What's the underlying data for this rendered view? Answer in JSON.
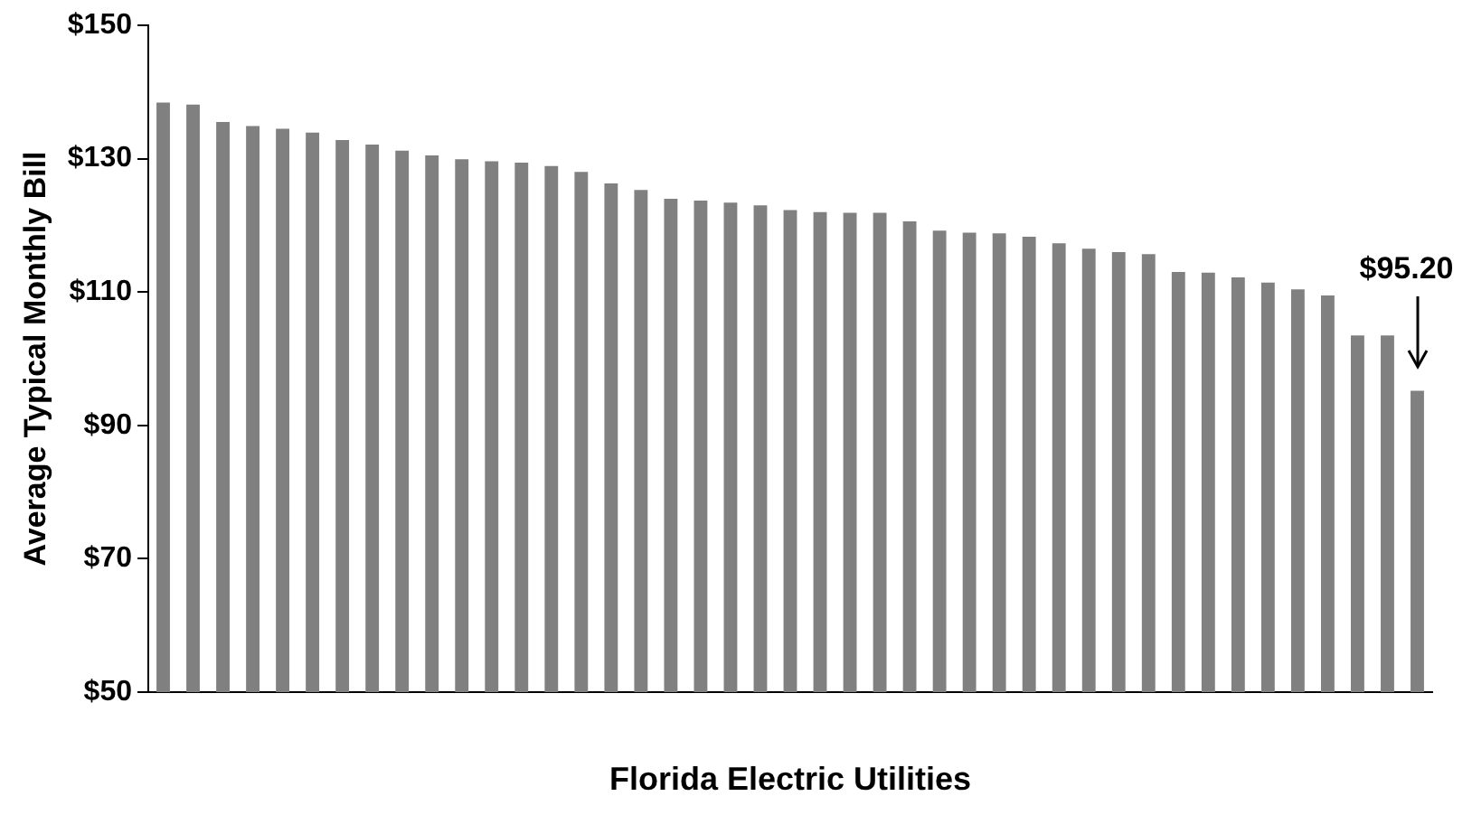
{
  "chart_data": {
    "type": "bar",
    "xlabel": "Florida Electric Utilities",
    "ylabel": "Average Typical Monthly Bill",
    "categories": [
      null,
      null,
      null,
      null,
      null,
      null,
      null,
      null,
      null,
      null,
      null,
      null,
      null,
      null,
      null,
      null,
      null,
      null,
      null,
      null,
      null,
      null,
      null,
      null,
      null,
      null,
      null,
      null,
      null,
      null,
      null,
      null,
      null,
      null,
      null,
      null,
      null,
      null,
      null,
      null,
      null,
      null,
      null
    ],
    "values": [
      138.4,
      138.1,
      135.5,
      134.9,
      134.5,
      133.9,
      132.8,
      132.1,
      131.2,
      130.5,
      129.9,
      129.6,
      129.4,
      128.9,
      128.0,
      126.3,
      125.3,
      124.0,
      123.7,
      123.4,
      123.0,
      122.3,
      122.0,
      121.9,
      121.9,
      120.6,
      119.2,
      118.9,
      118.8,
      118.3,
      117.3,
      116.5,
      116.0,
      115.7,
      113.0,
      112.9,
      112.2,
      111.4,
      110.4,
      109.5,
      103.5,
      103.5,
      95.2
    ],
    "color": "#808080",
    "ylim": [
      50,
      150
    ],
    "yticks": [
      {
        "value": 50,
        "label": "$50"
      },
      {
        "value": 70,
        "label": "$70"
      },
      {
        "value": 90,
        "label": "$90"
      },
      {
        "value": 110,
        "label": "$110"
      },
      {
        "value": 130,
        "label": "$130"
      },
      {
        "value": 150,
        "label": "$150"
      }
    ],
    "grid": false,
    "legend": false,
    "annotations": [
      "$95.20"
    ]
  }
}
